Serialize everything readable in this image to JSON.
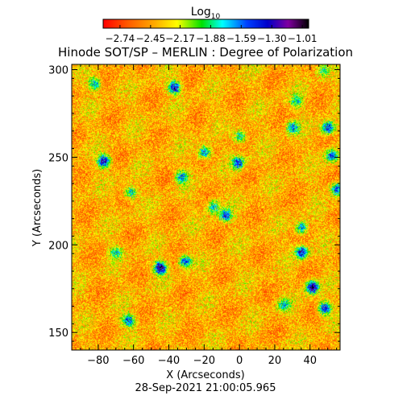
{
  "chart_data": {
    "type": "heatmap",
    "title": "Hinode SOT/SP – MERLIN : Degree of Polarization",
    "xlabel": "X (Arcseconds)",
    "ylabel": "Y (Arcseconds)",
    "footer": "28-Sep-2021 21:00:05.965",
    "xlim": [
      -95,
      57
    ],
    "ylim": [
      140,
      303
    ],
    "x_ticks": [
      -80,
      -60,
      -40,
      -20,
      0,
      20,
      40
    ],
    "y_ticks": [
      150,
      200,
      250,
      300
    ],
    "colorbar": {
      "title": "Log",
      "title_subscript": "10",
      "range": [
        -2.9,
        -0.95
      ],
      "tick_labels": [
        "−2.74",
        "−2.45",
        "−2.17",
        "−1.88",
        "−1.59",
        "−1.30",
        "−1.01"
      ],
      "tick_values": [
        -2.74,
        -2.45,
        -2.17,
        -1.88,
        -1.59,
        -1.3,
        -1.01
      ],
      "colormap": "rainbow (red → orange → yellow → green → cyan → blue → purple → black)"
    },
    "background_value": -2.4,
    "patches": [
      {
        "x": -77,
        "y": 248,
        "value": -1.25
      },
      {
        "x": -82,
        "y": 292,
        "value": -1.7
      },
      {
        "x": -37,
        "y": 290,
        "value": -1.3
      },
      {
        "x": -20,
        "y": 253,
        "value": -1.5
      },
      {
        "x": -15,
        "y": 222,
        "value": -1.7
      },
      {
        "x": -33,
        "y": 239,
        "value": -1.6
      },
      {
        "x": -62,
        "y": 230,
        "value": -1.7
      },
      {
        "x": -45,
        "y": 187,
        "value": -1.1
      },
      {
        "x": -31,
        "y": 191,
        "value": -1.5
      },
      {
        "x": -70,
        "y": 196,
        "value": -1.8
      },
      {
        "x": -63,
        "y": 157,
        "value": -1.5
      },
      {
        "x": -8,
        "y": 217,
        "value": -1.5
      },
      {
        "x": -1,
        "y": 247,
        "value": -1.4
      },
      {
        "x": 0,
        "y": 262,
        "value": -1.7
      },
      {
        "x": 30,
        "y": 267,
        "value": -1.6
      },
      {
        "x": 32,
        "y": 282,
        "value": -1.8
      },
      {
        "x": 50,
        "y": 267,
        "value": -1.3
      },
      {
        "x": 52,
        "y": 251,
        "value": -1.5
      },
      {
        "x": 55,
        "y": 232,
        "value": -1.5
      },
      {
        "x": 35,
        "y": 210,
        "value": -1.6
      },
      {
        "x": 35,
        "y": 196,
        "value": -1.3
      },
      {
        "x": 41,
        "y": 176,
        "value": -1.05
      },
      {
        "x": 48,
        "y": 164,
        "value": -1.3
      },
      {
        "x": 25,
        "y": 166,
        "value": -1.8
      },
      {
        "x": 47,
        "y": 300,
        "value": -1.9
      }
    ]
  }
}
